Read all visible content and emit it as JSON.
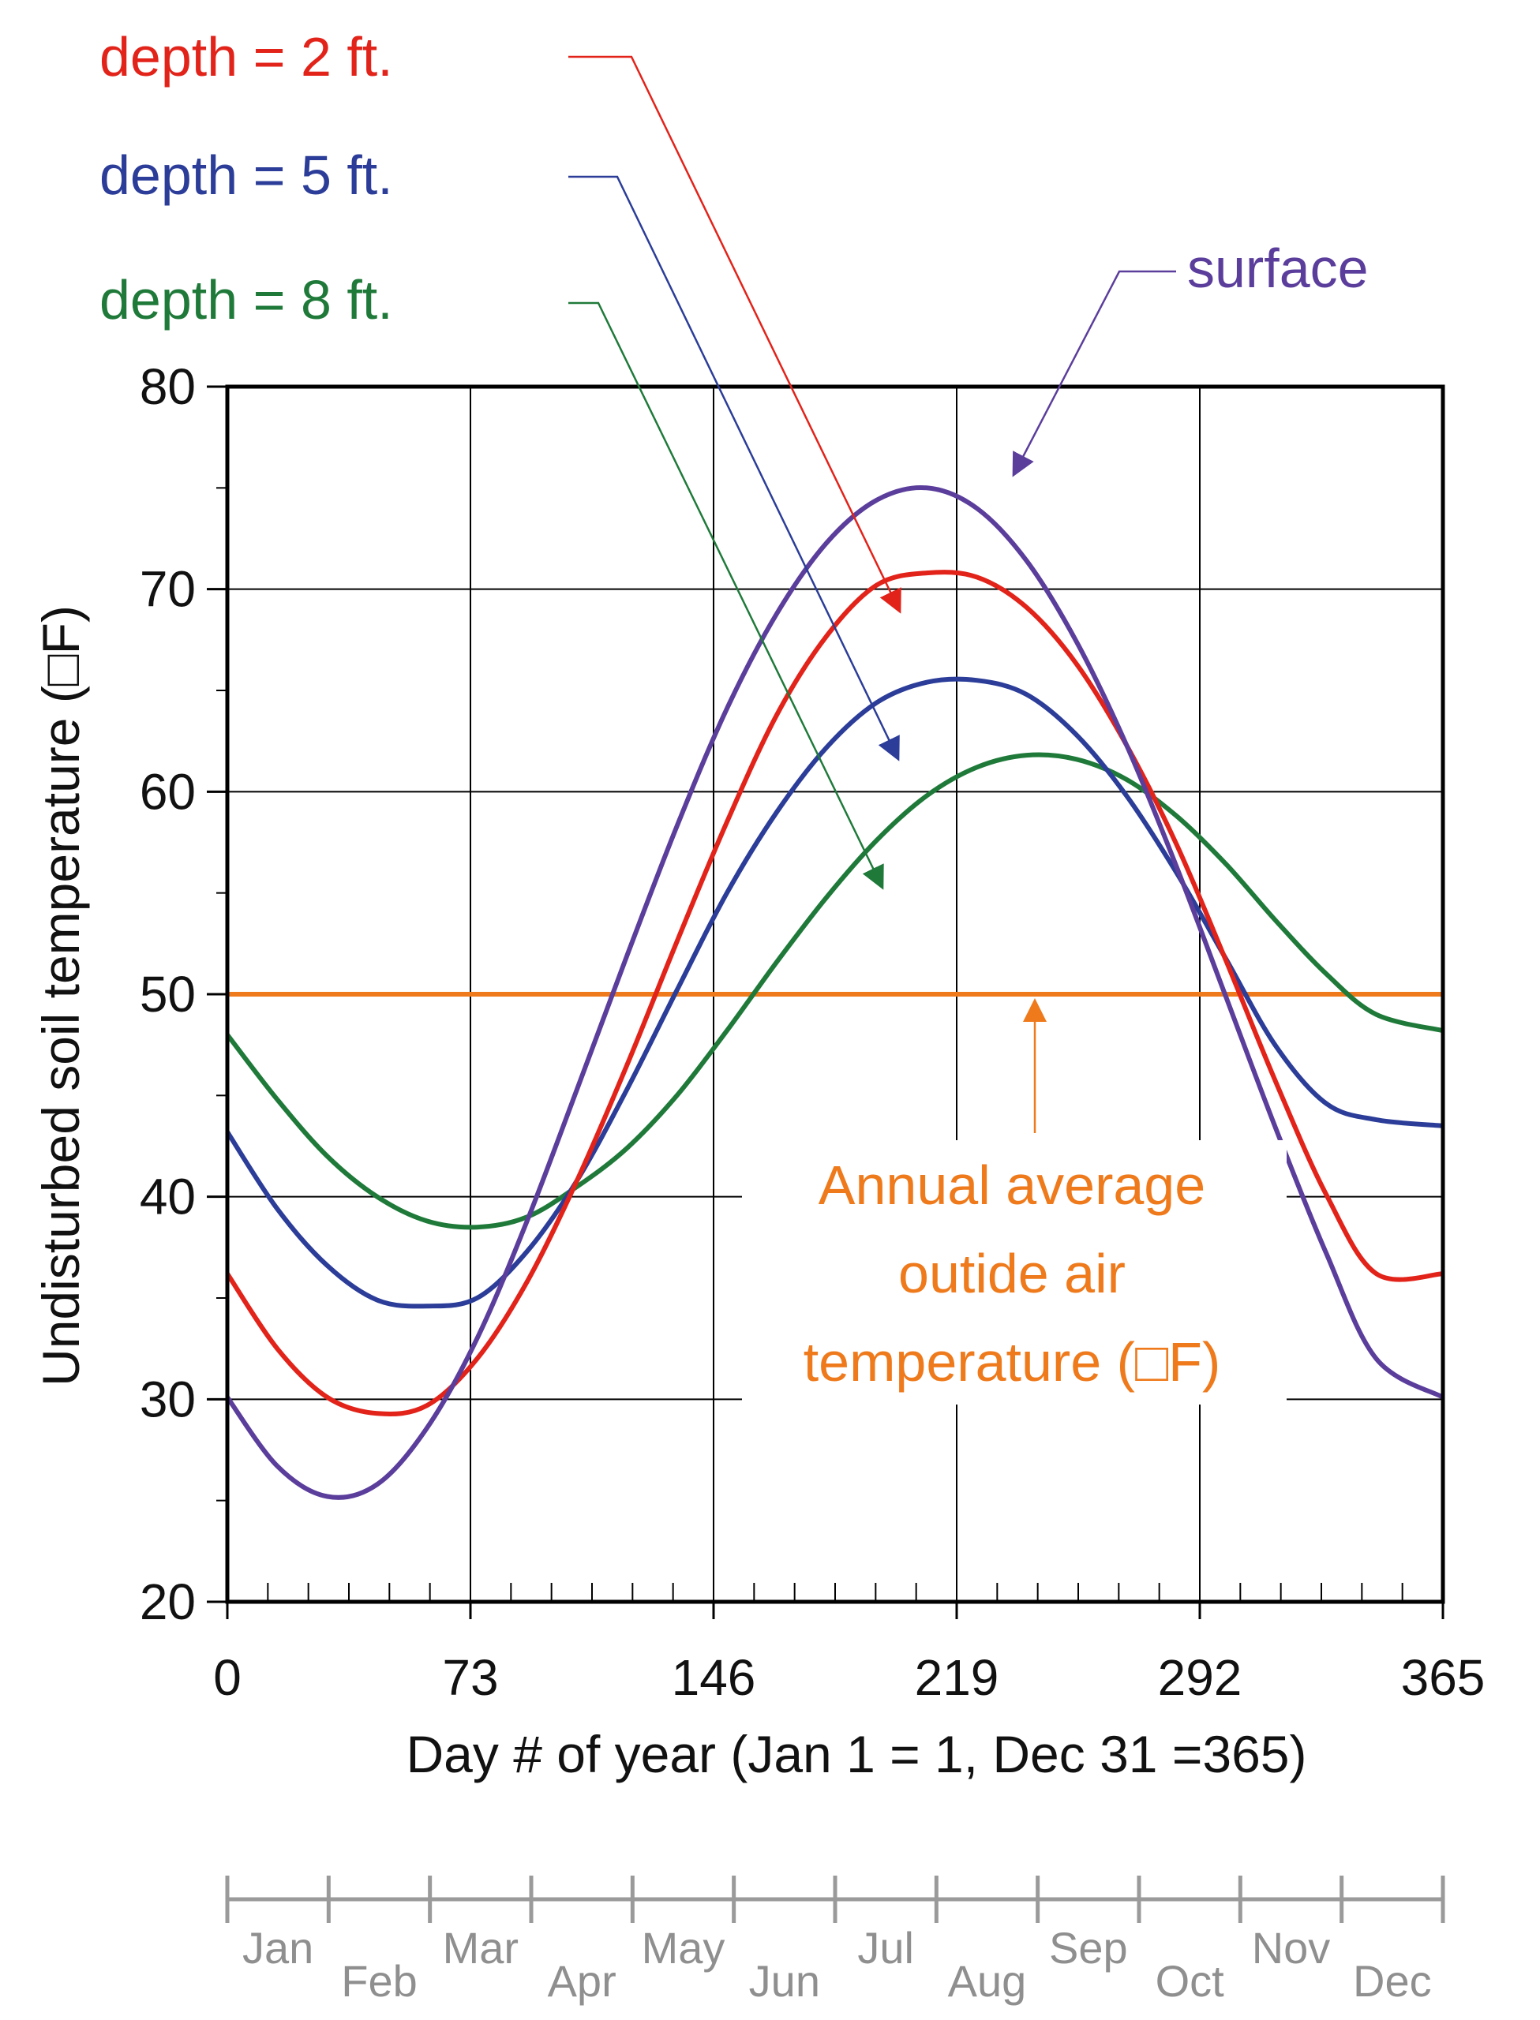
{
  "chart_data": {
    "type": "line",
    "xlabel": "Day # of year (Jan 1 = 1, Dec 31 =365)",
    "ylabel": "Undisturbed soil temperature (□F)",
    "xlim": [
      0,
      365
    ],
    "ylim": [
      20,
      80
    ],
    "x_ticks": [
      0,
      73,
      146,
      219,
      292,
      365
    ],
    "y_ticks": [
      20,
      30,
      40,
      50,
      60,
      70,
      80
    ],
    "grid": true,
    "x": [
      0,
      15,
      30,
      45,
      60,
      75,
      90,
      105,
      120,
      135,
      150,
      165,
      180,
      195,
      210,
      225,
      240,
      255,
      270,
      285,
      300,
      315,
      330,
      345,
      365
    ],
    "series": [
      {
        "name": "surface",
        "color": "#5b3e9c",
        "values": [
          30.1,
          26.7,
          25.2,
          25.8,
          28.6,
          33.0,
          38.8,
          45.3,
          51.9,
          58.3,
          64.1,
          68.8,
          72.3,
          74.4,
          75.0,
          74.0,
          71.4,
          67.4,
          62.3,
          56.3,
          49.8,
          43.3,
          37.2,
          32.0,
          30.1
        ]
      },
      {
        "name": "depth = 2 ft.",
        "color": "#e2231a",
        "values": [
          36.2,
          32.5,
          30.1,
          29.3,
          29.7,
          32.0,
          35.8,
          40.8,
          46.5,
          52.6,
          58.5,
          63.8,
          67.7,
          70.2,
          70.8,
          70.6,
          69.1,
          66.3,
          62.3,
          57.4,
          51.6,
          45.6,
          40.1,
          36.2,
          36.2
        ]
      },
      {
        "name": "depth = 5 ft.",
        "color": "#2b3d98",
        "values": [
          43.2,
          39.4,
          36.6,
          34.9,
          34.6,
          35.0,
          37.3,
          40.8,
          45.3,
          50.2,
          55.0,
          59.0,
          62.2,
          64.4,
          65.4,
          65.5,
          64.8,
          62.8,
          59.8,
          56.0,
          51.7,
          47.4,
          44.6,
          43.8,
          43.5
        ]
      },
      {
        "name": "depth = 8 ft.",
        "color": "#1f7a3a",
        "values": [
          48.0,
          44.8,
          42.0,
          40.0,
          38.8,
          38.5,
          39.0,
          40.5,
          42.4,
          45.0,
          48.2,
          51.6,
          54.8,
          57.6,
          59.8,
          61.2,
          61.8,
          61.6,
          60.6,
          58.8,
          56.4,
          53.6,
          51.0,
          49.0,
          48.2
        ]
      },
      {
        "name": "Annual average outide air temperature (□F)",
        "color": "#ee7a1c",
        "values": [
          50,
          50,
          50,
          50,
          50,
          50,
          50,
          50,
          50,
          50,
          50,
          50,
          50,
          50,
          50,
          50,
          50,
          50,
          50,
          50,
          50,
          50,
          50,
          50,
          50
        ]
      }
    ],
    "annotations": {
      "surface": "surface",
      "depth_2": "depth = 2 ft.",
      "depth_5": "depth = 5 ft.",
      "depth_8": "depth = 8 ft.",
      "average_lines": [
        "Annual average",
        "outide air",
        "temperature (□F)"
      ]
    },
    "months": [
      "Jan",
      "Feb",
      "Mar",
      "Apr",
      "May",
      "Jun",
      "Jul",
      "Aug",
      "Sep",
      "Oct",
      "Nov",
      "Dec"
    ]
  }
}
